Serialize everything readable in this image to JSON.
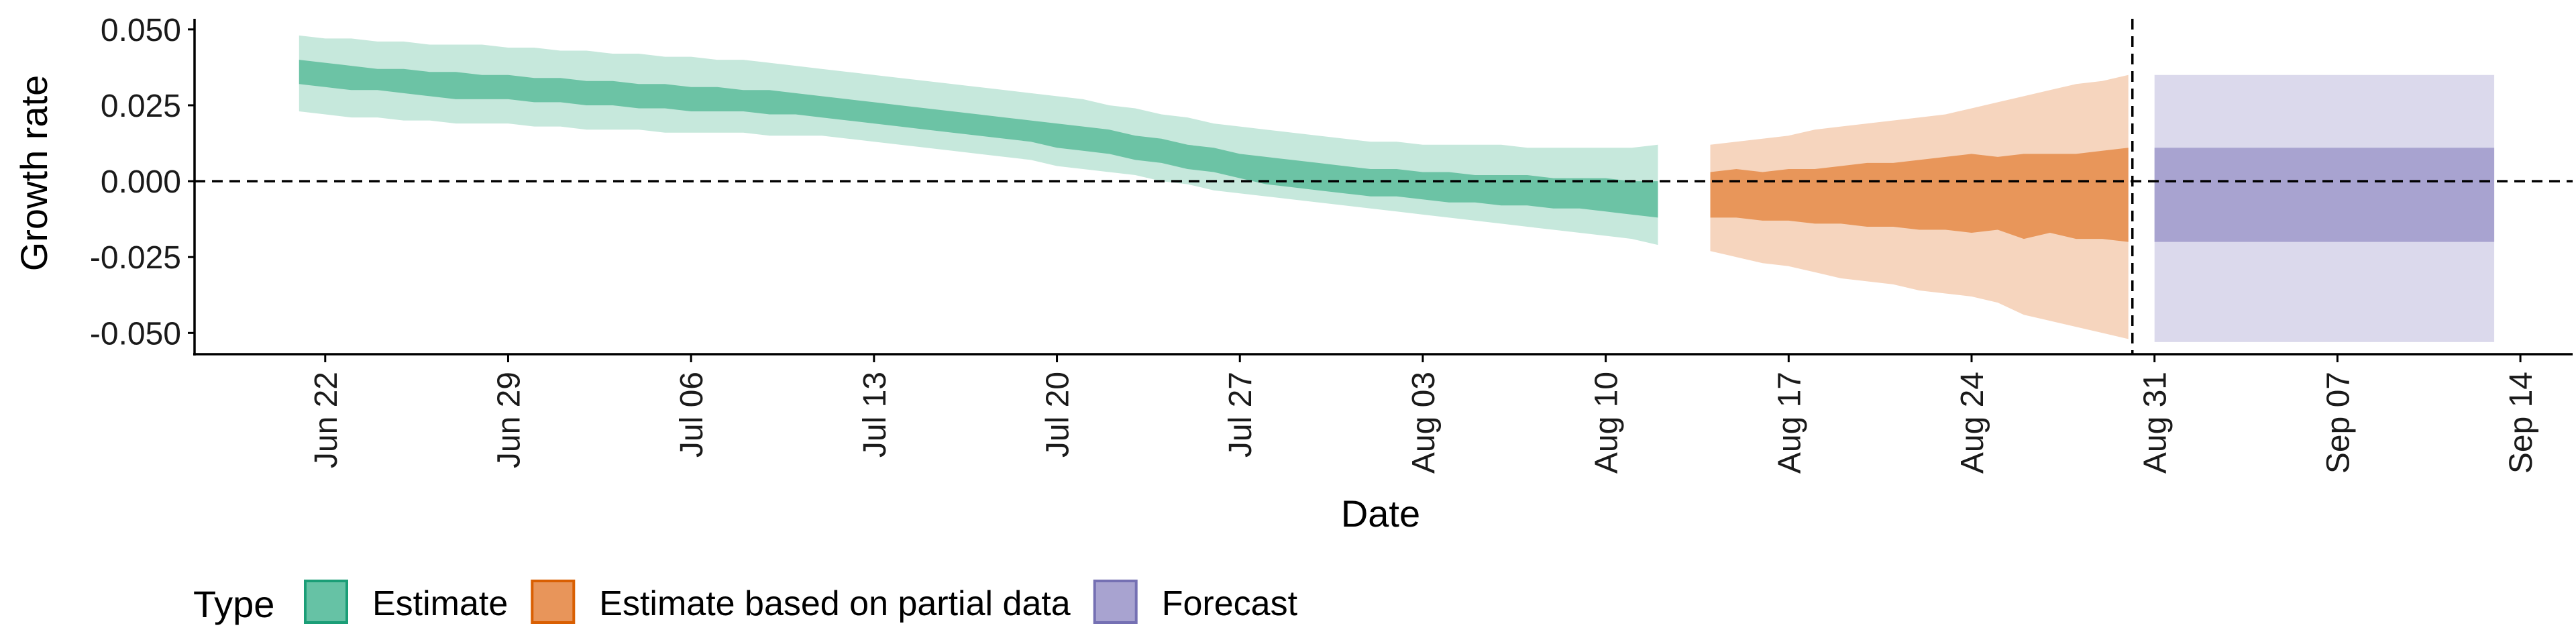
{
  "chart_data": {
    "type": "area",
    "title": "",
    "xlabel": "Date",
    "ylabel": "Growth rate",
    "ylim": [
      -0.057,
      0.0535
    ],
    "xlim": [
      "2020-06-17",
      "2020-09-16"
    ],
    "x_ticks": [
      {
        "date": "2020-06-22",
        "label": "Jun 22"
      },
      {
        "date": "2020-06-29",
        "label": "Jun 29"
      },
      {
        "date": "2020-07-06",
        "label": "Jul 06"
      },
      {
        "date": "2020-07-13",
        "label": "Jul 13"
      },
      {
        "date": "2020-07-20",
        "label": "Jul 20"
      },
      {
        "date": "2020-07-27",
        "label": "Jul 27"
      },
      {
        "date": "2020-08-03",
        "label": "Aug 03"
      },
      {
        "date": "2020-08-10",
        "label": "Aug 10"
      },
      {
        "date": "2020-08-17",
        "label": "Aug 17"
      },
      {
        "date": "2020-08-24",
        "label": "Aug 24"
      },
      {
        "date": "2020-08-31",
        "label": "Aug 31"
      },
      {
        "date": "2020-09-07",
        "label": "Sep 07"
      },
      {
        "date": "2020-09-14",
        "label": "Sep 14"
      }
    ],
    "y_ticks": [
      {
        "value": 0.05,
        "label": "0.050"
      },
      {
        "value": 0.025,
        "label": "0.025"
      },
      {
        "value": 0.0,
        "label": "0.000"
      },
      {
        "value": -0.025,
        "label": "-0.025"
      },
      {
        "value": -0.05,
        "label": "-0.050"
      }
    ],
    "reference_lines": {
      "horizontal_y": 0.0,
      "vertical_date": "2020-08-30"
    },
    "grid": false,
    "legend": {
      "title": "Type",
      "position": "bottom-left",
      "items": [
        {
          "label": "Estimate",
          "fill": "#66C2A5",
          "stroke": "#1B9E77"
        },
        {
          "label": "Estimate based on partial data",
          "fill": "#E8955A",
          "stroke": "#D95F02"
        },
        {
          "label": "Forecast",
          "fill": "#A8A3D0",
          "stroke": "#7570B3"
        }
      ]
    },
    "series": [
      {
        "type_label": "Estimate",
        "colors": {
          "outer": "#C6E8DC",
          "inner": "#6CC3A5"
        },
        "x": [
          "2020-06-21",
          "2020-06-22",
          "2020-06-23",
          "2020-06-24",
          "2020-06-25",
          "2020-06-26",
          "2020-06-27",
          "2020-06-28",
          "2020-06-29",
          "2020-06-30",
          "2020-07-01",
          "2020-07-02",
          "2020-07-03",
          "2020-07-04",
          "2020-07-05",
          "2020-07-06",
          "2020-07-07",
          "2020-07-08",
          "2020-07-09",
          "2020-07-10",
          "2020-07-11",
          "2020-07-12",
          "2020-07-13",
          "2020-07-14",
          "2020-07-15",
          "2020-07-16",
          "2020-07-17",
          "2020-07-18",
          "2020-07-19",
          "2020-07-20",
          "2020-07-21",
          "2020-07-22",
          "2020-07-23",
          "2020-07-24",
          "2020-07-25",
          "2020-07-26",
          "2020-07-27",
          "2020-07-28",
          "2020-07-29",
          "2020-07-30",
          "2020-07-31",
          "2020-08-01",
          "2020-08-02",
          "2020-08-03",
          "2020-08-04",
          "2020-08-05",
          "2020-08-06",
          "2020-08-07",
          "2020-08-08",
          "2020-08-09",
          "2020-08-10",
          "2020-08-11",
          "2020-08-12"
        ],
        "lower_90": [
          0.023,
          0.022,
          0.021,
          0.021,
          0.02,
          0.02,
          0.019,
          0.019,
          0.019,
          0.018,
          0.018,
          0.017,
          0.017,
          0.017,
          0.016,
          0.016,
          0.016,
          0.016,
          0.015,
          0.015,
          0.015,
          0.014,
          0.013,
          0.012,
          0.011,
          0.01,
          0.009,
          0.008,
          0.007,
          0.005,
          0.004,
          0.003,
          0.002,
          0.0,
          -0.001,
          -0.003,
          -0.004,
          -0.005,
          -0.006,
          -0.007,
          -0.008,
          -0.009,
          -0.01,
          -0.011,
          -0.012,
          -0.013,
          -0.014,
          -0.015,
          -0.016,
          -0.017,
          -0.018,
          -0.019,
          -0.021
        ],
        "lower_50": [
          0.032,
          0.031,
          0.03,
          0.03,
          0.029,
          0.028,
          0.027,
          0.027,
          0.027,
          0.026,
          0.026,
          0.025,
          0.025,
          0.024,
          0.024,
          0.023,
          0.023,
          0.023,
          0.022,
          0.022,
          0.021,
          0.02,
          0.019,
          0.018,
          0.017,
          0.016,
          0.015,
          0.014,
          0.013,
          0.011,
          0.01,
          0.009,
          0.007,
          0.006,
          0.004,
          0.003,
          0.001,
          -0.001,
          -0.002,
          -0.003,
          -0.004,
          -0.005,
          -0.005,
          -0.006,
          -0.007,
          -0.007,
          -0.008,
          -0.008,
          -0.009,
          -0.009,
          -0.01,
          -0.011,
          -0.012
        ],
        "upper_50": [
          0.04,
          0.039,
          0.038,
          0.037,
          0.037,
          0.036,
          0.036,
          0.035,
          0.035,
          0.034,
          0.034,
          0.033,
          0.033,
          0.032,
          0.032,
          0.031,
          0.031,
          0.03,
          0.03,
          0.029,
          0.028,
          0.027,
          0.026,
          0.025,
          0.024,
          0.023,
          0.022,
          0.021,
          0.02,
          0.019,
          0.018,
          0.017,
          0.015,
          0.014,
          0.012,
          0.011,
          0.009,
          0.008,
          0.007,
          0.006,
          0.005,
          0.004,
          0.004,
          0.003,
          0.003,
          0.002,
          0.002,
          0.002,
          0.001,
          0.001,
          0.001,
          0.0,
          0.0
        ],
        "upper_90": [
          0.048,
          0.047,
          0.047,
          0.046,
          0.046,
          0.045,
          0.045,
          0.045,
          0.044,
          0.044,
          0.043,
          0.043,
          0.042,
          0.042,
          0.041,
          0.041,
          0.04,
          0.04,
          0.039,
          0.038,
          0.037,
          0.036,
          0.035,
          0.034,
          0.033,
          0.032,
          0.031,
          0.03,
          0.029,
          0.028,
          0.027,
          0.025,
          0.024,
          0.022,
          0.021,
          0.019,
          0.018,
          0.017,
          0.016,
          0.015,
          0.014,
          0.013,
          0.013,
          0.012,
          0.012,
          0.012,
          0.012,
          0.011,
          0.011,
          0.011,
          0.011,
          0.011,
          0.012
        ]
      },
      {
        "type_label": "Estimate based on partial data",
        "colors": {
          "outer": "#F6D5BE",
          "inner": "#E8965A"
        },
        "x": [
          "2020-08-14",
          "2020-08-15",
          "2020-08-16",
          "2020-08-17",
          "2020-08-18",
          "2020-08-19",
          "2020-08-20",
          "2020-08-21",
          "2020-08-22",
          "2020-08-23",
          "2020-08-24",
          "2020-08-25",
          "2020-08-26",
          "2020-08-27",
          "2020-08-28",
          "2020-08-29",
          "2020-08-30"
        ],
        "lower_90": [
          -0.023,
          -0.025,
          -0.027,
          -0.028,
          -0.03,
          -0.032,
          -0.033,
          -0.034,
          -0.036,
          -0.037,
          -0.038,
          -0.04,
          -0.044,
          -0.046,
          -0.048,
          -0.05,
          -0.052
        ],
        "lower_50": [
          -0.012,
          -0.012,
          -0.013,
          -0.013,
          -0.014,
          -0.014,
          -0.015,
          -0.015,
          -0.016,
          -0.016,
          -0.017,
          -0.016,
          -0.019,
          -0.017,
          -0.019,
          -0.019,
          -0.02
        ],
        "upper_50": [
          0.003,
          0.004,
          0.003,
          0.004,
          0.004,
          0.005,
          0.006,
          0.006,
          0.007,
          0.008,
          0.009,
          0.008,
          0.009,
          0.009,
          0.009,
          0.01,
          0.011
        ],
        "upper_90": [
          0.012,
          0.013,
          0.014,
          0.015,
          0.017,
          0.018,
          0.019,
          0.02,
          0.021,
          0.022,
          0.024,
          0.026,
          0.028,
          0.03,
          0.032,
          0.033,
          0.035
        ]
      },
      {
        "type_label": "Forecast",
        "colors": {
          "outer": "#DBD9EC",
          "inner": "#A8A3D0"
        },
        "x": [
          "2020-08-31",
          "2020-09-13"
        ],
        "lower_90": [
          -0.053,
          -0.053
        ],
        "lower_50": [
          -0.02,
          -0.02
        ],
        "upper_50": [
          0.011,
          0.011
        ],
        "upper_90": [
          0.035,
          0.035
        ]
      }
    ]
  }
}
